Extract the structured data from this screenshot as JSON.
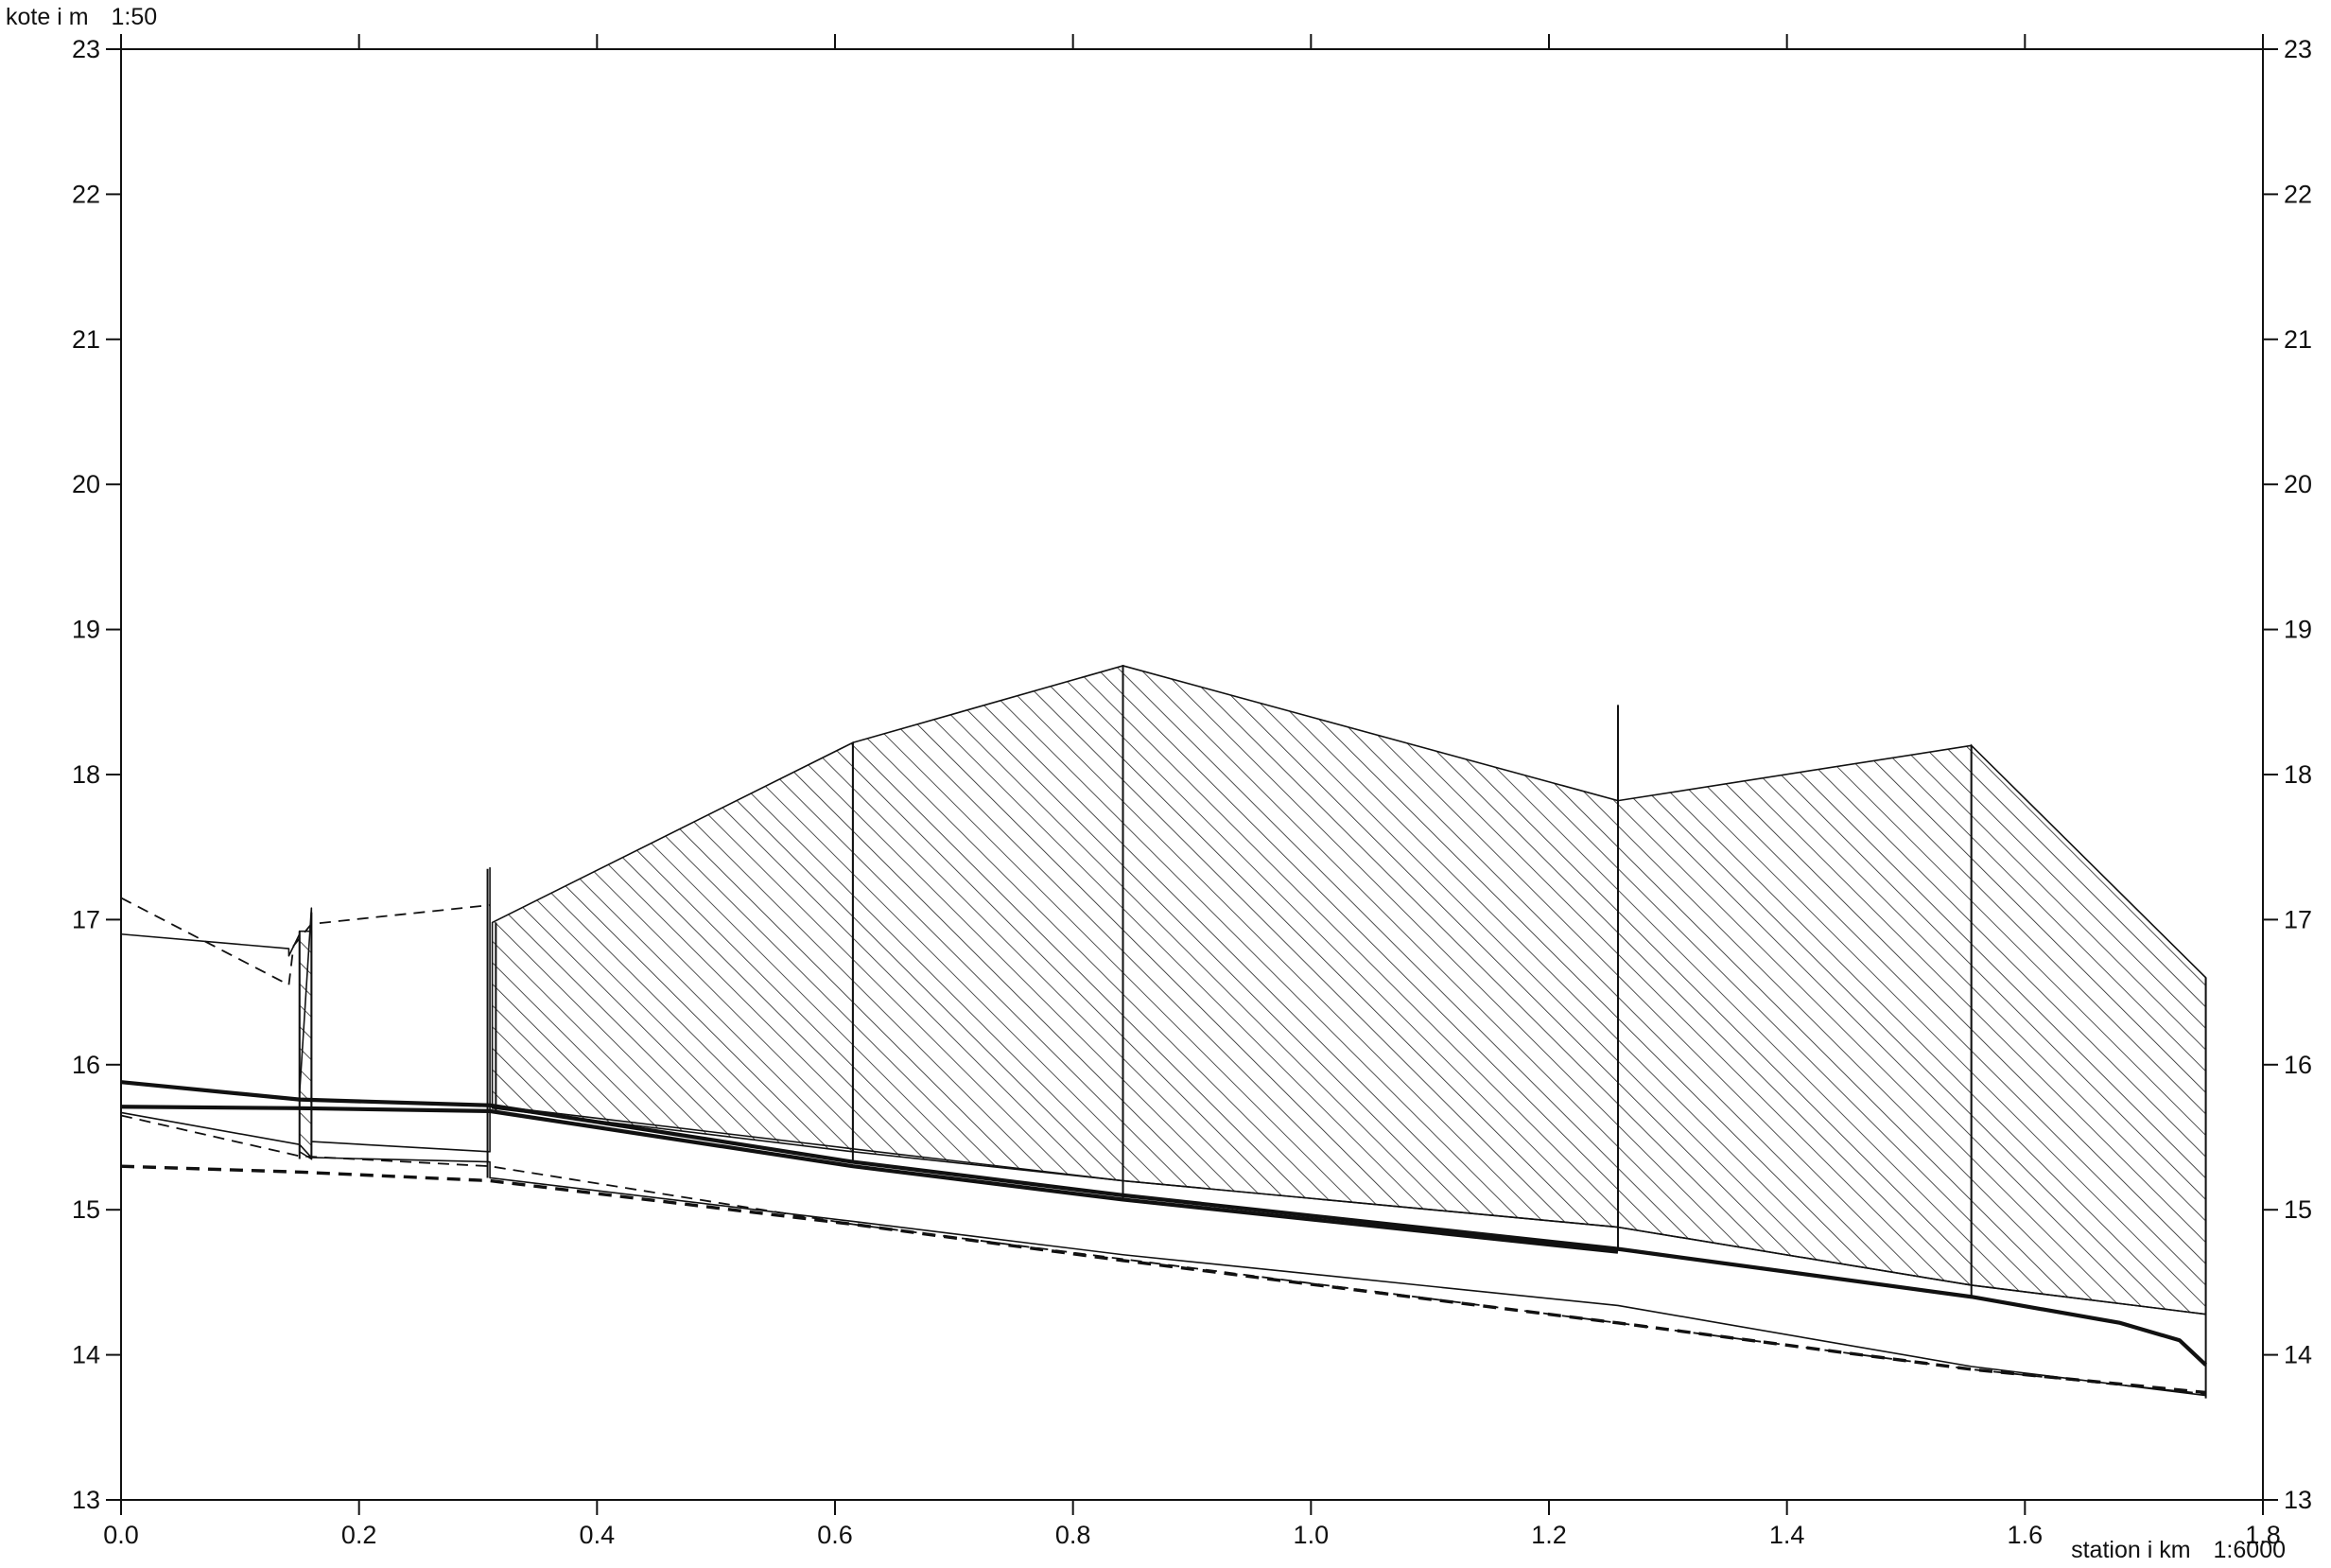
{
  "chart_data": {
    "type": "line",
    "title": "",
    "ylabel": "kote i m",
    "ylabel_scale": "1:50",
    "xlabel": "station i km",
    "xlabel_scale": "1:6000",
    "xlim": [
      0.0,
      1.8
    ],
    "ylim": [
      13,
      23
    ],
    "x_tick_labels": [
      "0.0",
      "0.2",
      "0.4",
      "0.6",
      "0.8",
      "1.0",
      "1.2",
      "1.4",
      "1.6",
      "1.8"
    ],
    "y_tick_labels": [
      "13",
      "14",
      "15",
      "16",
      "17",
      "18",
      "19",
      "20",
      "21",
      "22",
      "23"
    ],
    "grid": false,
    "legend": "none",
    "colors": {
      "line": "#111111",
      "hatch": "#222222",
      "background": "#ffffff"
    },
    "hatched_regions": [
      {
        "x": [
          0.312,
          0.312,
          0.615,
          0.615
        ],
        "top": [
          16.98,
          16.98,
          18.22,
          18.22
        ],
        "bottom": [
          15.7,
          15.7,
          15.4,
          15.4
        ]
      },
      {
        "x": [
          0.615,
          0.842
        ],
        "top": [
          18.22,
          18.75
        ],
        "bottom": [
          15.4,
          15.2
        ]
      },
      {
        "x": [
          0.842,
          1.258
        ],
        "top": [
          18.75,
          17.82
        ],
        "bottom": [
          15.2,
          14.88
        ]
      },
      {
        "x": [
          1.258,
          1.555
        ],
        "top": [
          17.82,
          18.2
        ],
        "bottom": [
          14.88,
          14.48
        ]
      },
      {
        "x": [
          1.555,
          1.752
        ],
        "top": [
          18.2,
          16.6
        ],
        "bottom": [
          14.48,
          14.28
        ]
      },
      {
        "x": [
          0.15,
          0.16
        ],
        "top": [
          16.92,
          16.92
        ],
        "bottom": [
          15.4,
          15.35
        ]
      }
    ],
    "series": [
      {
        "style": "thin",
        "x": [
          0.0,
          0.141,
          0.141,
          0.15,
          0.15,
          0.16,
          0.16,
          0.31,
          0.31
        ],
        "y": [
          16.9,
          16.8,
          16.75,
          16.9,
          15.8,
          17.08,
          15.47,
          15.4,
          17.36
        ]
      },
      {
        "style": "dashed",
        "x": [
          0.0,
          0.141,
          0.145,
          0.16,
          0.31
        ],
        "y": [
          17.15,
          16.55,
          16.82,
          16.97,
          17.1
        ]
      },
      {
        "style": "thin",
        "x": [
          0.31,
          0.615,
          0.842,
          1.258,
          1.555,
          1.752
        ],
        "y": [
          15.72,
          15.42,
          15.2,
          14.88,
          14.48,
          14.28
        ]
      },
      {
        "style": "thick",
        "x": [
          0.0,
          0.15,
          0.31,
          0.615,
          0.842,
          1.258,
          1.555,
          1.68,
          1.73,
          1.752
        ],
        "y": [
          15.88,
          15.76,
          15.72,
          15.33,
          15.1,
          14.73,
          14.4,
          14.22,
          14.1,
          13.93
        ]
      },
      {
        "style": "thick",
        "x": [
          0.0,
          0.15,
          0.31,
          0.615,
          0.842,
          1.258
        ],
        "y": [
          15.71,
          15.7,
          15.68,
          15.3,
          15.07,
          14.71
        ]
      },
      {
        "style": "thin",
        "x": [
          0.0,
          0.15,
          0.16,
          0.31,
          0.31,
          0.615,
          0.842,
          1.258,
          1.555,
          1.752
        ],
        "y": [
          15.67,
          15.45,
          15.36,
          15.33,
          15.22,
          14.92,
          14.69,
          14.34,
          13.92,
          13.72
        ]
      },
      {
        "style": "dashed",
        "x": [
          0.0,
          0.15,
          0.31,
          0.615,
          0.842,
          1.258,
          1.555,
          1.752
        ],
        "y": [
          15.65,
          15.37,
          15.3,
          14.9,
          14.66,
          14.22,
          13.9,
          13.73
        ]
      },
      {
        "style": "thick-dashed",
        "x": [
          0.0,
          0.15,
          0.31,
          0.615,
          0.842,
          1.258,
          1.555,
          1.752
        ],
        "y": [
          15.3,
          15.26,
          15.2,
          14.9,
          14.65,
          14.22,
          13.9,
          13.74
        ]
      }
    ],
    "verticals": [
      {
        "x": 0.15,
        "y": [
          15.35,
          16.92
        ]
      },
      {
        "x": 0.16,
        "y": [
          15.35,
          17.05
        ]
      },
      {
        "x": 0.308,
        "y": [
          15.22,
          17.35
        ]
      },
      {
        "x": 0.315,
        "y": [
          15.68,
          16.98
        ]
      },
      {
        "x": 0.615,
        "y": [
          15.33,
          18.22
        ]
      },
      {
        "x": 0.842,
        "y": [
          15.07,
          18.75
        ]
      },
      {
        "x": 1.258,
        "y": [
          14.72,
          18.48
        ]
      },
      {
        "x": 1.555,
        "y": [
          14.4,
          18.2
        ]
      },
      {
        "x": 1.752,
        "y": [
          13.7,
          16.6
        ]
      }
    ]
  }
}
